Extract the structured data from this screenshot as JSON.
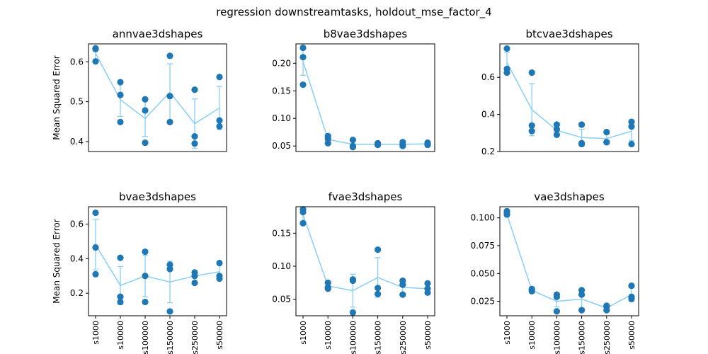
{
  "figure": {
    "title": "regression downstreamtasks, holdout_mse_factor_4",
    "ylabel": "Mean Squared Error"
  },
  "colors": {
    "line": "#87cefa",
    "errorbar": "#87cefa",
    "points": "#1f77b4"
  },
  "chart_data": [
    {
      "type": "line",
      "title": "annvae3dshapes",
      "ylabel": "Mean Squared Error",
      "categories": [
        "s1000",
        "s10000",
        "s100000",
        "s150000",
        "s250000",
        "s50000"
      ],
      "show_xticks": false,
      "ylim": [
        0.375,
        0.645
      ],
      "yticks": [
        0.4,
        0.5,
        0.6
      ],
      "ytick_labels": [
        "0.4",
        "0.5",
        "0.6"
      ],
      "mean": [
        0.621,
        0.505,
        0.458,
        0.524,
        0.445,
        0.484
      ],
      "err": [
        0.015,
        0.042,
        0.045,
        0.071,
        0.062,
        0.054
      ],
      "points": [
        [
          0.634,
          0.632,
          0.601
        ],
        [
          0.549,
          0.517,
          0.449
        ],
        [
          0.506,
          0.478,
          0.397
        ],
        [
          0.615,
          0.514,
          0.449
        ],
        [
          0.53,
          0.413,
          0.395
        ],
        [
          0.562,
          0.453,
          0.438
        ]
      ]
    },
    {
      "type": "line",
      "title": "b8vae3dshapes",
      "ylabel": "",
      "categories": [
        "s1000",
        "s10000",
        "s100000",
        "s150000",
        "s250000",
        "s50000"
      ],
      "show_xticks": false,
      "ylim": [
        0.04,
        0.235
      ],
      "yticks": [
        0.05,
        0.1,
        0.15,
        0.2
      ],
      "ytick_labels": [
        "0.05",
        "0.10",
        "0.15",
        "0.20"
      ],
      "mean": [
        0.203,
        0.062,
        0.053,
        0.053,
        0.053,
        0.054
      ],
      "err": [
        0.025,
        0.005,
        0.005,
        0.002,
        0.003,
        0.003
      ],
      "points": [
        [
          0.228,
          0.211,
          0.161
        ],
        [
          0.068,
          0.063,
          0.055
        ],
        [
          0.061,
          0.05,
          0.048
        ],
        [
          0.055,
          0.053,
          0.052
        ],
        [
          0.057,
          0.053,
          0.05
        ],
        [
          0.056,
          0.053,
          0.052
        ]
      ]
    },
    {
      "type": "line",
      "title": "btcvae3dshapes",
      "ylabel": "",
      "categories": [
        "s1000",
        "s10000",
        "s100000",
        "s150000",
        "s250000",
        "s50000"
      ],
      "show_xticks": false,
      "ylim": [
        0.2,
        0.78
      ],
      "yticks": [
        0.2,
        0.4,
        0.6
      ],
      "ytick_labels": [
        "0.2",
        "0.4",
        "0.6"
      ],
      "mean": [
        0.68,
        0.425,
        0.315,
        0.275,
        0.27,
        0.31
      ],
      "err": [
        0.055,
        0.14,
        0.03,
        0.045,
        0.025,
        0.05
      ],
      "points": [
        [
          0.755,
          0.645,
          0.625
        ],
        [
          0.625,
          0.34,
          0.31
        ],
        [
          0.345,
          0.32,
          0.29
        ],
        [
          0.345,
          0.245,
          0.24
        ],
        [
          0.305,
          0.25,
          0.25
        ],
        [
          0.36,
          0.335,
          0.24
        ]
      ]
    },
    {
      "type": "line",
      "title": "bvae3dshapes",
      "ylabel": "Mean Squared Error",
      "categories": [
        "s1000",
        "s10000",
        "s100000",
        "s150000",
        "s250000",
        "s50000"
      ],
      "show_xticks": true,
      "ylim": [
        0.07,
        0.7
      ],
      "yticks": [
        0.2,
        0.4,
        0.6
      ],
      "ytick_labels": [
        "0.2",
        "0.4",
        "0.6"
      ],
      "mean": [
        0.48,
        0.245,
        0.3,
        0.265,
        0.3,
        0.325
      ],
      "err": [
        0.145,
        0.11,
        0.12,
        0.12,
        0.03,
        0.04
      ],
      "points": [
        [
          0.665,
          0.465,
          0.31
        ],
        [
          0.405,
          0.18,
          0.15
        ],
        [
          0.44,
          0.3,
          0.15
        ],
        [
          0.365,
          0.34,
          0.095
        ],
        [
          0.32,
          0.3,
          0.26
        ],
        [
          0.375,
          0.3,
          0.285
        ]
      ]
    },
    {
      "type": "line",
      "title": "fvae3dshapes",
      "ylabel": "",
      "categories": [
        "s1000",
        "s10000",
        "s100000",
        "s150000",
        "s250000",
        "s50000"
      ],
      "show_xticks": true,
      "ylim": [
        0.025,
        0.19
      ],
      "yticks": [
        0.05,
        0.1,
        0.15
      ],
      "ytick_labels": [
        "0.05",
        "0.10",
        "0.15"
      ],
      "mean": [
        0.178,
        0.07,
        0.063,
        0.083,
        0.068,
        0.066
      ],
      "err": [
        0.01,
        0.004,
        0.025,
        0.03,
        0.01,
        0.008
      ],
      "points": [
        [
          0.186,
          0.182,
          0.165
        ],
        [
          0.075,
          0.068,
          0.066
        ],
        [
          0.08,
          0.078,
          0.03
        ],
        [
          0.125,
          0.067,
          0.058
        ],
        [
          0.078,
          0.072,
          0.057
        ],
        [
          0.074,
          0.066,
          0.06
        ]
      ]
    },
    {
      "type": "line",
      "title": "vae3dshapes",
      "ylabel": "",
      "categories": [
        "s1000",
        "s10000",
        "s100000",
        "s150000",
        "s250000",
        "s50000"
      ],
      "show_xticks": true,
      "ylim": [
        0.012,
        0.11
      ],
      "yticks": [
        0.025,
        0.05,
        0.075,
        0.1
      ],
      "ytick_labels": [
        "0.025",
        "0.050",
        "0.075",
        "0.100"
      ],
      "mean": [
        0.103,
        0.035,
        0.025,
        0.027,
        0.019,
        0.031
      ],
      "err": [
        0.002,
        0.001,
        0.005,
        0.008,
        0.003,
        0.006
      ],
      "points": [
        [
          0.106,
          0.104,
          0.103
        ],
        [
          0.036,
          0.035,
          0.034
        ],
        [
          0.031,
          0.029,
          0.016
        ],
        [
          0.035,
          0.031,
          0.017
        ],
        [
          0.021,
          0.02,
          0.017
        ],
        [
          0.039,
          0.029,
          0.027
        ]
      ]
    }
  ]
}
